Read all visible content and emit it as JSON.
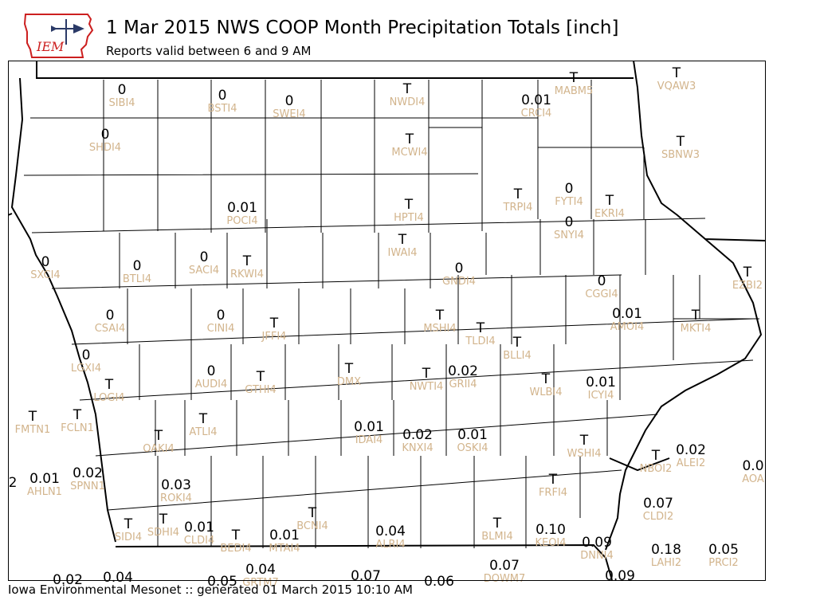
{
  "header": {
    "title": "1 Mar 2015 NWS COOP Month Precipitation Totals [inch]",
    "subtitle": "Reports valid between 6 and 9 AM",
    "logo_text": "IEM"
  },
  "footer": {
    "text": "Iowa Environmental Mesonet :: generated 01 March 2015 10:10 AM"
  },
  "colors": {
    "station_label": "#D2B48C",
    "value": "#000000",
    "logo_red": "#cc1f1f",
    "logo_blue": "#2b3a67"
  },
  "stations": [
    {
      "id": "SIBI4",
      "value": "0"
    },
    {
      "id": "BSTI4",
      "value": "0"
    },
    {
      "id": "SWEI4",
      "value": "0"
    },
    {
      "id": "NWDI4",
      "value": "T"
    },
    {
      "id": "CRCI4",
      "value": "0.01"
    },
    {
      "id": "MABM5",
      "value": "T"
    },
    {
      "id": "VQAW3",
      "value": "T"
    },
    {
      "id": "SHDI4",
      "value": "0"
    },
    {
      "id": "MCWI4",
      "value": "T"
    },
    {
      "id": "SBNW3",
      "value": "T"
    },
    {
      "id": "POCI4",
      "value": "0.01"
    },
    {
      "id": "HPTI4",
      "value": "T"
    },
    {
      "id": "TRPI4",
      "value": "T"
    },
    {
      "id": "FYTI4",
      "value": "0"
    },
    {
      "id": "EKRI4",
      "value": "T"
    },
    {
      "id": "SNYI4",
      "value": "0"
    },
    {
      "id": "IWAI4",
      "value": "T"
    },
    {
      "id": "SXCI4",
      "value": "0"
    },
    {
      "id": "BTLI4",
      "value": "0"
    },
    {
      "id": "SACI4",
      "value": "0"
    },
    {
      "id": "RKWI4",
      "value": "T"
    },
    {
      "id": "GNDI4",
      "value": "0"
    },
    {
      "id": "EZBI2",
      "value": "T"
    },
    {
      "id": "CGGI4",
      "value": "0"
    },
    {
      "id": "CSAI4",
      "value": "0"
    },
    {
      "id": "CINI4",
      "value": "0"
    },
    {
      "id": "JFFI4",
      "value": "T"
    },
    {
      "id": "MSHI4",
      "value": "T"
    },
    {
      "id": "TLDI4",
      "value": "T"
    },
    {
      "id": "AMOI4",
      "value": "0.01"
    },
    {
      "id": "MKTI4",
      "value": "T"
    },
    {
      "id": "BLLI4",
      "value": "T"
    },
    {
      "id": "LGXI4",
      "value": "0"
    },
    {
      "id": "AUDI4",
      "value": "0"
    },
    {
      "id": "GTHI4",
      "value": "T"
    },
    {
      "id": "DMX",
      "value": "T"
    },
    {
      "id": "NWTI4",
      "value": "T"
    },
    {
      "id": "GRII4",
      "value": "0.02"
    },
    {
      "id": "WLBI4",
      "value": "T"
    },
    {
      "id": "ICYI4",
      "value": "0.01"
    },
    {
      "id": "LOGI4",
      "value": "T"
    },
    {
      "id": "FMTN1",
      "value": "T"
    },
    {
      "id": "FCLN1",
      "value": "T"
    },
    {
      "id": "OAKI4",
      "value": "T"
    },
    {
      "id": "ATLI4",
      "value": "T"
    },
    {
      "id": "IDAI4",
      "value": "0.01"
    },
    {
      "id": "KNXI4",
      "value": "0.02"
    },
    {
      "id": "OSKI4",
      "value": "0.01"
    },
    {
      "id": "WSHI4",
      "value": "T"
    },
    {
      "id": "NBOI2",
      "value": "T"
    },
    {
      "id": "ALEI2",
      "value": "0.02"
    },
    {
      "id": "AOA",
      "value": "0.0"
    },
    {
      "id": "AHLN1",
      "value": "0.01"
    },
    {
      "id": "SPNN1",
      "value": "0.02"
    },
    {
      "id": "ROKI4",
      "value": "0.03"
    },
    {
      "id": "FRFI4",
      "value": "T"
    },
    {
      "id": "CLDI2",
      "value": "0.07"
    },
    {
      "id": "SIDI4",
      "value": "T"
    },
    {
      "id": "SDHI4",
      "value": "T"
    },
    {
      "id": "CLDI4",
      "value": "0.01"
    },
    {
      "id": "BEDI4",
      "value": "T"
    },
    {
      "id": "MTAI4",
      "value": "0.01"
    },
    {
      "id": "BCNI4",
      "value": "T"
    },
    {
      "id": "ALRI4",
      "value": "0.04"
    },
    {
      "id": "BLMI4",
      "value": "T"
    },
    {
      "id": "KEOI4",
      "value": "0.10"
    },
    {
      "id": "DNNI4",
      "value": "0.09"
    },
    {
      "id": "LAHI2",
      "value": "0.18"
    },
    {
      "id": "PRCI2",
      "value": "0.05"
    },
    {
      "id": "GRTM7",
      "value": "0.04"
    },
    {
      "id": "DOWM7",
      "value": "0.07"
    }
  ],
  "edge_values": [
    "2",
    "0.02",
    "0.04",
    "0.05",
    "0.07",
    "0.06",
    "0.09"
  ]
}
